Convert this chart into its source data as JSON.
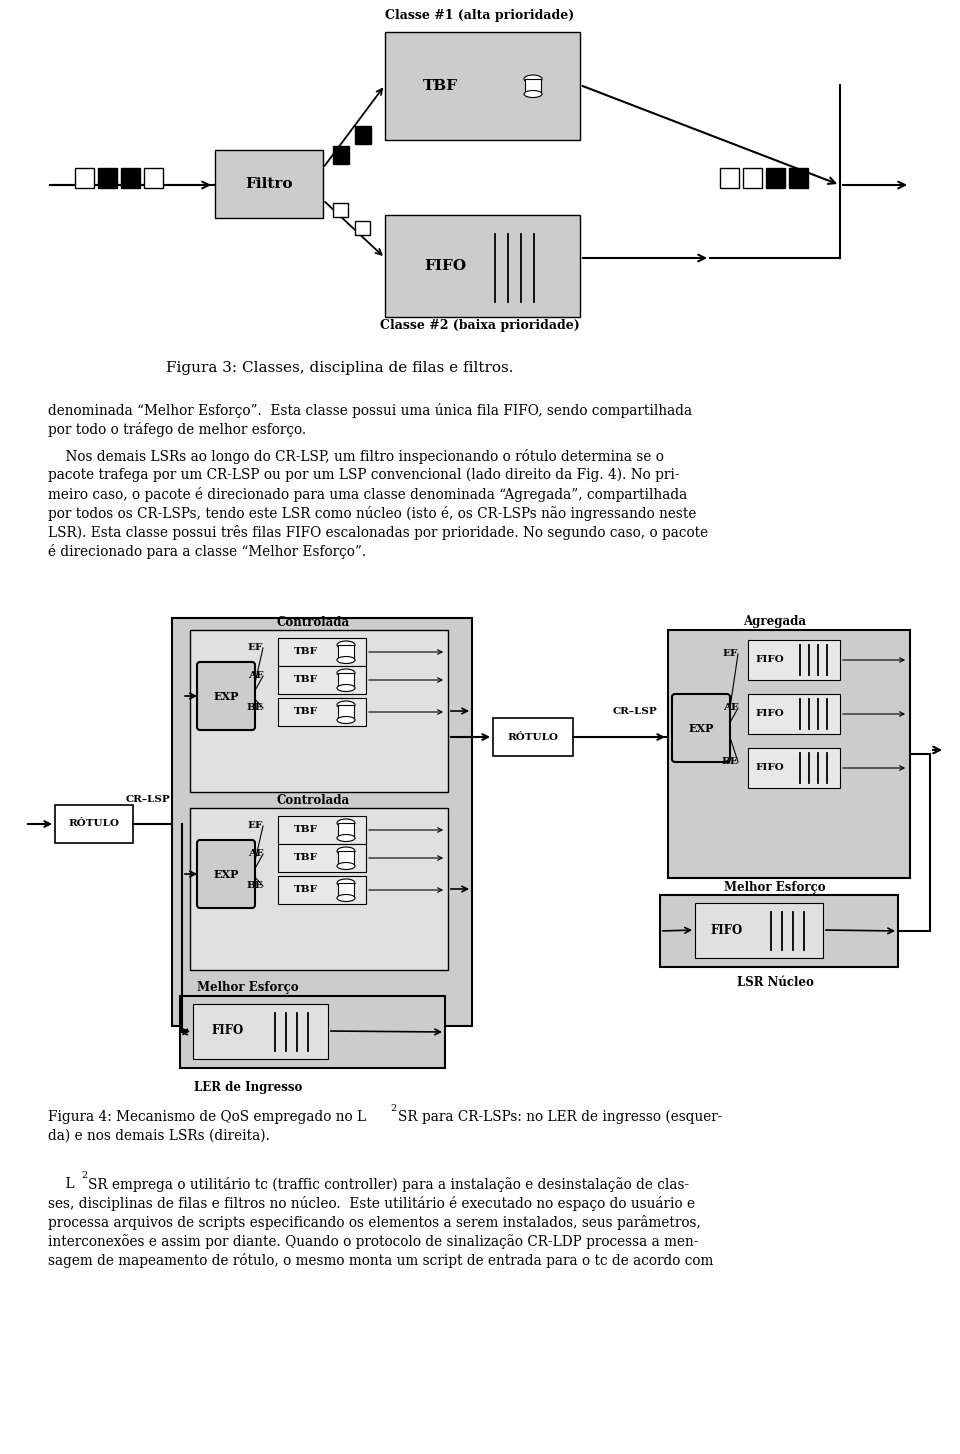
{
  "fig_width": 9.6,
  "fig_height": 14.54,
  "bg_color": "#ffffff",
  "box_fill_dark": "#cccccc",
  "box_fill_light": "#e8e8e8",
  "box_fill_inner": "#e0e0e0",
  "fig3_caption": "Figura 3: Classes, disciplina de filas e filtros.",
  "para1_lines": [
    "denominada “Melhor Esforço”.  Esta classe possui uma única fila FIFO, sendo compartilhada",
    "por todo o tráfego de melhor esforço."
  ],
  "para2_lines": [
    "    Nos demais LSRs ao longo do CR-LSP, um filtro inspecionando o rótulo determina se o",
    "pacote trafega por um CR-LSP ou por um LSP convencional (lado direito da Fig. 4). No pri-",
    "meiro caso, o pacote é direcionado para uma classe denominada “Agregada”, compartilhada",
    "por todos os CR-LSPs, tendo este LSR como núcleo (isto é, os CR-LSPs não ingressando neste",
    "LSR). Esta classe possui três filas FIFO escalonadas por prioridade. No segundo caso, o pacote",
    "é direcionado para a classe “Melhor Esforço”."
  ],
  "para3_line1a": "    L",
  "para3_line1b": "SR emprega o utilitário tc (traffic controller) para a instalação e desinstalação de clas-",
  "para3_lines": [
    "ses, disciplinas de filas e filtros no núcleo.  Este utilitário é executado no espaço do usuário e",
    "processa arquivos de scripts especificando os elementos a serem instalados, seus parâmetros,",
    "interconexões e assim por diante. Quando o protocolo de sinalização CR-LDP processa a men-",
    "sagem de mapeamento de rótulo, o mesmo monta um script de entrada para o tc de acordo com"
  ],
  "fig4_cap_a": "Figura 4: Mecanismo de QoS empregado no L",
  "fig4_cap_b": "SR para CR-LSPs: no LER de ingresso (esquer-",
  "fig4_cap_c": "da) e nos demais LSRs (direita)."
}
